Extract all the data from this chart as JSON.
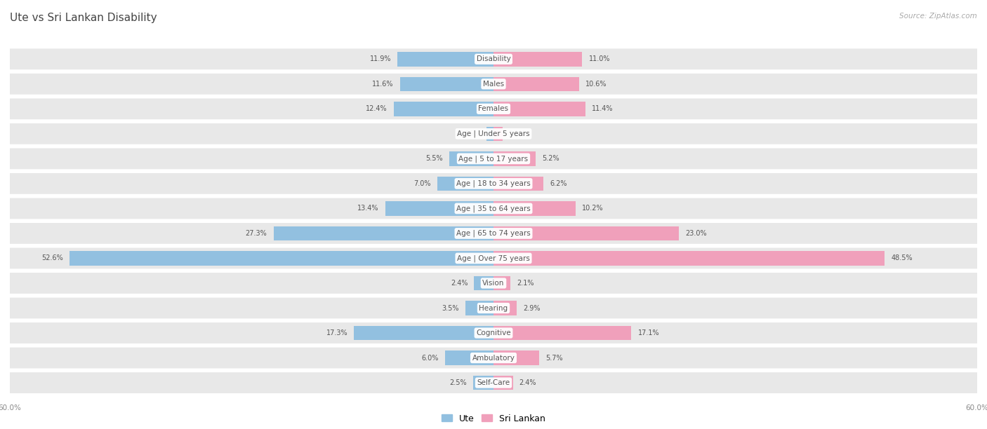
{
  "title": "Ute vs Sri Lankan Disability",
  "source": "Source: ZipAtlas.com",
  "categories": [
    "Disability",
    "Males",
    "Females",
    "Age | Under 5 years",
    "Age | 5 to 17 years",
    "Age | 18 to 34 years",
    "Age | 35 to 64 years",
    "Age | 65 to 74 years",
    "Age | Over 75 years",
    "Vision",
    "Hearing",
    "Cognitive",
    "Ambulatory",
    "Self-Care"
  ],
  "ute_values": [
    11.9,
    11.6,
    12.4,
    0.86,
    5.5,
    7.0,
    13.4,
    27.3,
    52.6,
    2.4,
    3.5,
    17.3,
    6.0,
    2.5
  ],
  "sri_lankan_values": [
    11.0,
    10.6,
    11.4,
    1.1,
    5.2,
    6.2,
    10.2,
    23.0,
    48.5,
    2.1,
    2.9,
    17.1,
    5.7,
    2.4
  ],
  "ute_color": "#92C0E0",
  "sri_lankan_color": "#F0A0BB",
  "ute_label": "Ute",
  "sri_lankan_label": "Sri Lankan",
  "axis_limit": 60.0,
  "bg_color": "#ffffff",
  "row_bg_color": "#e8e8e8",
  "row_gap_color": "#ffffff",
  "title_fontsize": 11,
  "label_fontsize": 7.5,
  "value_fontsize": 7,
  "axis_label_fontsize": 7.5
}
